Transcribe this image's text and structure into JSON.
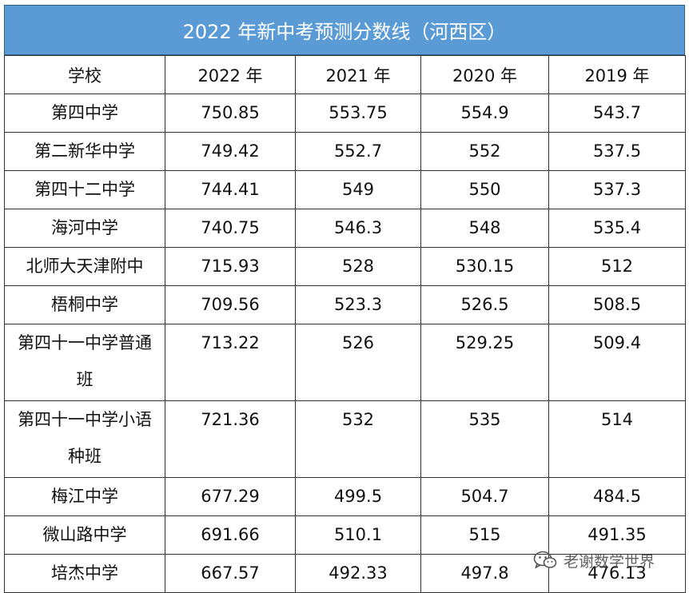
{
  "title": "2022 年新中考预测分数线（河西区）",
  "headers": [
    "学校",
    "2022 年",
    "2021 年",
    "2020 年",
    "2019 年"
  ],
  "rows": [
    {
      "school": "第四中学",
      "y2022": "750.85",
      "y2021": "553.75",
      "y2020": "554.9",
      "y2019": "543.7"
    },
    {
      "school": "第二新华中学",
      "y2022": "749.42",
      "y2021": "552.7",
      "y2020": "552",
      "y2019": "537.5"
    },
    {
      "school": "第四十二中学",
      "y2022": "744.41",
      "y2021": "549",
      "y2020": "550",
      "y2019": "537.3"
    },
    {
      "school": "海河中学",
      "y2022": "740.75",
      "y2021": "546.3",
      "y2020": "548",
      "y2019": "535.4"
    },
    {
      "school": "北师大天津附中",
      "y2022": "715.93",
      "y2021": "528",
      "y2020": "530.15",
      "y2019": "512"
    },
    {
      "school": "梧桐中学",
      "y2022": "709.56",
      "y2021": "523.3",
      "y2020": "526.5",
      "y2019": "508.5"
    },
    {
      "school": "第四十一中学普通班",
      "y2022": "713.22",
      "y2021": "526",
      "y2020": "529.25",
      "y2019": "509.4"
    },
    {
      "school": "第四十一中学小语种班",
      "y2022": "721.36",
      "y2021": "532",
      "y2020": "535",
      "y2019": "514"
    },
    {
      "school": "梅江中学",
      "y2022": "677.29",
      "y2021": "499.5",
      "y2020": "504.7",
      "y2019": "484.5"
    },
    {
      "school": "微山路中学",
      "y2022": "691.66",
      "y2021": "510.1",
      "y2020": "515",
      "y2019": "491.35"
    },
    {
      "school": "培杰中学",
      "y2022": "667.57",
      "y2021": "492.33",
      "y2020": "497.8",
      "y2019": "476.13"
    }
  ],
  "watermark": {
    "text": "老谢数学世界",
    "icon": "wechat-icon"
  },
  "colors": {
    "header_bg": "#5b9bd5",
    "header_text": "#ffffff",
    "border": "#333333"
  }
}
